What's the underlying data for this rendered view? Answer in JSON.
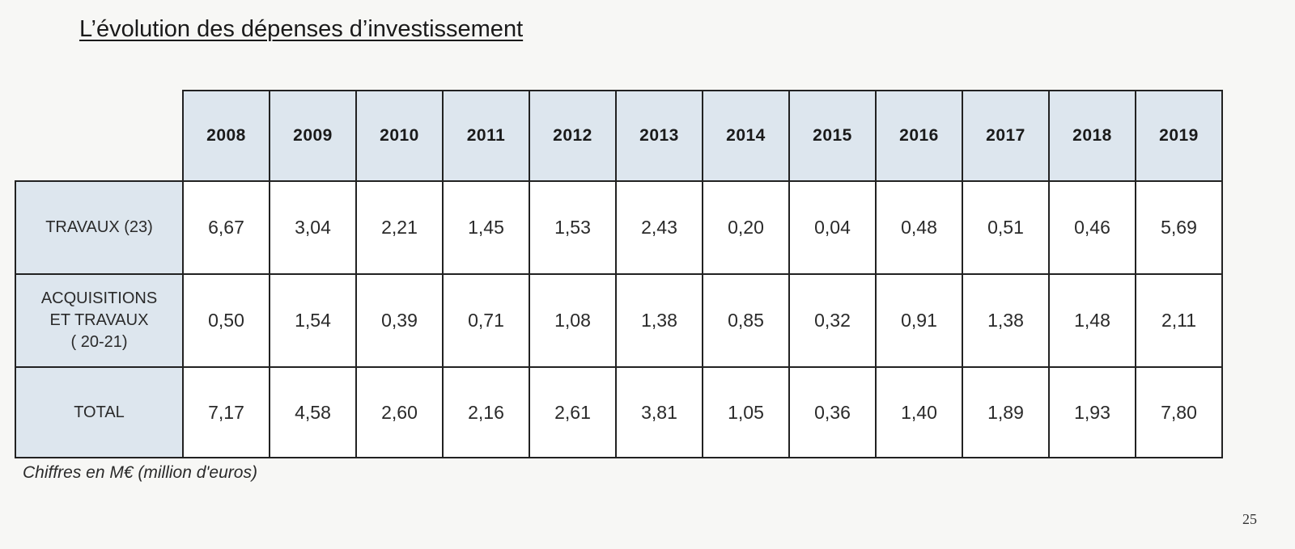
{
  "title": "L’évolution des dépenses d’investissement",
  "table": {
    "years": [
      "2008",
      "2009",
      "2010",
      "2011",
      "2012",
      "2013",
      "2014",
      "2015",
      "2016",
      "2017",
      "2018",
      "2019"
    ],
    "rows": [
      {
        "label_lines": [
          "TRAVAUX (23)"
        ],
        "values": [
          "6,67",
          "3,04",
          "2,21",
          "1,45",
          "1,53",
          "2,43",
          "0,20",
          "0,04",
          "0,48",
          "0,51",
          "0,46",
          "5,69"
        ]
      },
      {
        "label_lines": [
          "ACQUISITIONS",
          "ET TRAVAUX",
          "( 20-21)"
        ],
        "values": [
          "0,50",
          "1,54",
          "0,39",
          "0,71",
          "1,08",
          "1,38",
          "0,85",
          "0,32",
          "0,91",
          "1,38",
          "1,48",
          "2,11"
        ]
      },
      {
        "label_lines": [
          "TOTAL"
        ],
        "values": [
          "7,17",
          "4,58",
          "2,60",
          "2,16",
          "2,61",
          "3,81",
          "1,05",
          "0,36",
          "1,40",
          "1,89",
          "1,93",
          "7,80"
        ]
      }
    ]
  },
  "footnote": "Chiffres en M€ (million d'euros)",
  "page_number": "25"
}
